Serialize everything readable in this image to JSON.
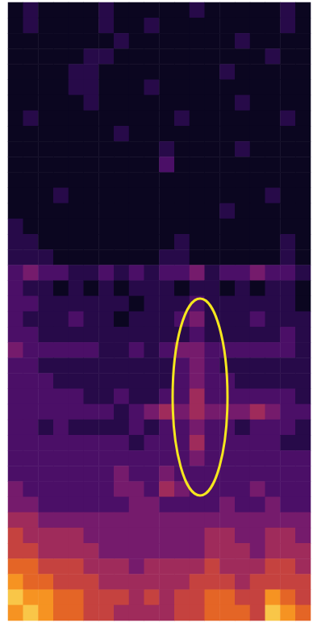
{
  "chart_data": {
    "type": "heatmap",
    "tick_labels": false,
    "grid": false,
    "zlim": [
      0,
      9
    ],
    "cells": [
      [
        0,
        1,
        0,
        0,
        0,
        0,
        1,
        0,
        0,
        0,
        0,
        0,
        1,
        0,
        0,
        0,
        0,
        0,
        1,
        0
      ],
      [
        0,
        1,
        0,
        0,
        0,
        0,
        1,
        0,
        0,
        1,
        0,
        0,
        0,
        0,
        0,
        0,
        0,
        0,
        1,
        0
      ],
      [
        0,
        0,
        0,
        0,
        0,
        0,
        0,
        1,
        0,
        0,
        0,
        0,
        0,
        0,
        0,
        1,
        0,
        0,
        0,
        0
      ],
      [
        0,
        0,
        0,
        0,
        0,
        1,
        1,
        0,
        0,
        0,
        0,
        0,
        0,
        0,
        0,
        0,
        0,
        1,
        0,
        0
      ],
      [
        0,
        0,
        0,
        0,
        1,
        1,
        0,
        0,
        0,
        0,
        0,
        0,
        0,
        0,
        1,
        0,
        0,
        0,
        0,
        0
      ],
      [
        0,
        0,
        0,
        0,
        1,
        1,
        0,
        0,
        0,
        1,
        0,
        0,
        0,
        0,
        0,
        0,
        0,
        0,
        0,
        0
      ],
      [
        0,
        0,
        0,
        0,
        0,
        1,
        0,
        0,
        0,
        0,
        0,
        0,
        0,
        0,
        0,
        1,
        0,
        0,
        0,
        0
      ],
      [
        0,
        1,
        0,
        0,
        0,
        0,
        0,
        0,
        0,
        0,
        0,
        1,
        0,
        0,
        0,
        0,
        0,
        0,
        1,
        0
      ],
      [
        0,
        0,
        0,
        0,
        0,
        0,
        0,
        1,
        0,
        0,
        0,
        0,
        0,
        0,
        0,
        0,
        0,
        0,
        0,
        0
      ],
      [
        0,
        0,
        0,
        0,
        0,
        0,
        0,
        0,
        0,
        0,
        1,
        0,
        0,
        0,
        0,
        1,
        0,
        0,
        0,
        0
      ],
      [
        0,
        0,
        0,
        0,
        0,
        0,
        0,
        0,
        0,
        0,
        2,
        0,
        0,
        0,
        0,
        0,
        0,
        0,
        0,
        0
      ],
      [
        0,
        0,
        0,
        0,
        0,
        0,
        0,
        0,
        0,
        0,
        0,
        0,
        0,
        0,
        0,
        0,
        0,
        0,
        0,
        0
      ],
      [
        0,
        0,
        0,
        1,
        0,
        0,
        0,
        0,
        0,
        0,
        0,
        0,
        0,
        0,
        0,
        0,
        0,
        1,
        0,
        0
      ],
      [
        0,
        0,
        0,
        0,
        0,
        0,
        0,
        0,
        0,
        0,
        0,
        0,
        0,
        0,
        1,
        0,
        0,
        0,
        0,
        0
      ],
      [
        1,
        0,
        0,
        0,
        0,
        0,
        0,
        0,
        0,
        0,
        0,
        0,
        0,
        0,
        0,
        0,
        0,
        0,
        0,
        0
      ],
      [
        1,
        1,
        0,
        0,
        0,
        0,
        0,
        0,
        0,
        0,
        0,
        1,
        0,
        0,
        0,
        0,
        0,
        0,
        1,
        0
      ],
      [
        1,
        1,
        1,
        0,
        0,
        0,
        0,
        0,
        0,
        0,
        1,
        1,
        0,
        0,
        0,
        0,
        0,
        0,
        1,
        0
      ],
      [
        2,
        3,
        2,
        2,
        1,
        1,
        2,
        1,
        2,
        1,
        2,
        2,
        3,
        1,
        2,
        2,
        3,
        2,
        2,
        1
      ],
      [
        2,
        1,
        1,
        0,
        1,
        0,
        1,
        0,
        1,
        1,
        1,
        0,
        1,
        1,
        0,
        1,
        0,
        1,
        1,
        0
      ],
      [
        2,
        2,
        1,
        1,
        1,
        1,
        1,
        1,
        0,
        1,
        1,
        1,
        2,
        1,
        1,
        1,
        1,
        1,
        1,
        0
      ],
      [
        2,
        1,
        1,
        1,
        2,
        1,
        1,
        0,
        1,
        1,
        1,
        2,
        3,
        1,
        1,
        1,
        2,
        1,
        1,
        1
      ],
      [
        2,
        2,
        1,
        1,
        1,
        1,
        1,
        1,
        1,
        1,
        1,
        1,
        2,
        1,
        1,
        1,
        1,
        1,
        2,
        1
      ],
      [
        3,
        2,
        2,
        2,
        2,
        2,
        1,
        1,
        2,
        1,
        2,
        3,
        3,
        2,
        2,
        2,
        2,
        2,
        2,
        1
      ],
      [
        2,
        2,
        1,
        1,
        1,
        1,
        1,
        1,
        1,
        1,
        1,
        2,
        3,
        2,
        1,
        1,
        1,
        1,
        1,
        1
      ],
      [
        2,
        2,
        2,
        1,
        1,
        1,
        1,
        1,
        1,
        1,
        1,
        2,
        3,
        2,
        2,
        1,
        1,
        1,
        1,
        1
      ],
      [
        2,
        2,
        2,
        2,
        2,
        1,
        1,
        2,
        1,
        1,
        2,
        2,
        4,
        2,
        2,
        2,
        2,
        2,
        2,
        1
      ],
      [
        2,
        2,
        2,
        2,
        2,
        2,
        2,
        1,
        2,
        3,
        4,
        3,
        4,
        3,
        3,
        3,
        4,
        3,
        2,
        2
      ],
      [
        2,
        2,
        1,
        2,
        1,
        1,
        1,
        1,
        2,
        1,
        2,
        2,
        3,
        2,
        2,
        1,
        2,
        2,
        2,
        1
      ],
      [
        2,
        2,
        2,
        2,
        2,
        2,
        2,
        2,
        1,
        2,
        2,
        2,
        4,
        2,
        2,
        2,
        2,
        2,
        1,
        1
      ],
      [
        2,
        2,
        2,
        2,
        2,
        2,
        2,
        2,
        2,
        2,
        2,
        2,
        3,
        2,
        2,
        2,
        2,
        2,
        2,
        2
      ],
      [
        2,
        2,
        2,
        2,
        2,
        2,
        2,
        3,
        2,
        2,
        3,
        2,
        2,
        2,
        2,
        2,
        2,
        2,
        2,
        2
      ],
      [
        3,
        2,
        2,
        2,
        2,
        2,
        2,
        3,
        3,
        2,
        4,
        3,
        2,
        2,
        2,
        2,
        3,
        2,
        2,
        2
      ],
      [
        3,
        3,
        2,
        2,
        2,
        2,
        2,
        2,
        3,
        3,
        2,
        2,
        2,
        2,
        3,
        2,
        2,
        3,
        2,
        2
      ],
      [
        4,
        4,
        3,
        3,
        3,
        3,
        3,
        3,
        3,
        3,
        3,
        3,
        3,
        3,
        3,
        3,
        3,
        3,
        3,
        3
      ],
      [
        5,
        4,
        4,
        4,
        4,
        3,
        3,
        3,
        3,
        3,
        3,
        3,
        3,
        4,
        4,
        3,
        3,
        4,
        4,
        3
      ],
      [
        5,
        5,
        4,
        4,
        4,
        4,
        3,
        3,
        3,
        3,
        3,
        3,
        3,
        4,
        4,
        4,
        3,
        4,
        4,
        4
      ],
      [
        6,
        6,
        5,
        5,
        5,
        4,
        4,
        4,
        3,
        4,
        4,
        4,
        4,
        5,
        4,
        4,
        4,
        5,
        5,
        4
      ],
      [
        7,
        6,
        6,
        5,
        5,
        5,
        4,
        4,
        4,
        4,
        4,
        4,
        5,
        5,
        5,
        4,
        5,
        5,
        5,
        5
      ],
      [
        8,
        7,
        7,
        6,
        6,
        5,
        5,
        5,
        4,
        5,
        4,
        5,
        5,
        6,
        6,
        5,
        5,
        7,
        6,
        5
      ],
      [
        7,
        8,
        7,
        6,
        6,
        5,
        5,
        4,
        4,
        4,
        4,
        5,
        5,
        6,
        6,
        6,
        5,
        8,
        7,
        6
      ]
    ]
  }
}
